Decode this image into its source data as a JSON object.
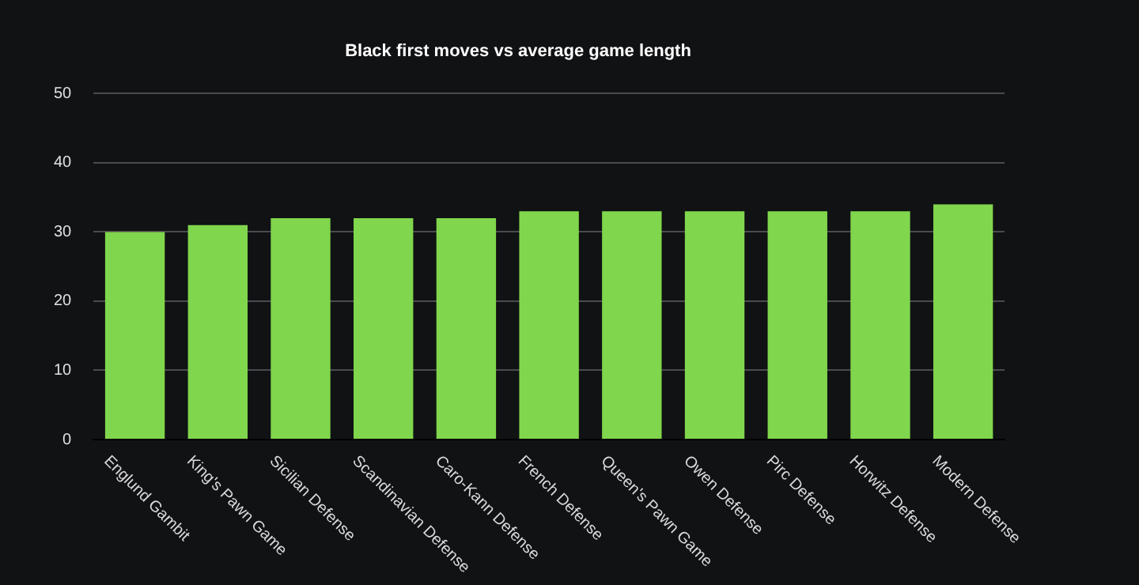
{
  "chart_data": {
    "type": "bar",
    "title": "Black first moves vs average game length",
    "categories": [
      "Englund Gambit",
      "King's Pawn Game",
      "Sicilian Defense",
      "Scandinavian Defense",
      "Caro-Kann Defense",
      "French Defense",
      "Queen's Pawn Game",
      "Owen Defense",
      "Pirc Defense",
      "Horwitz Defense",
      "Modern Defense"
    ],
    "values": [
      30,
      31,
      32,
      32,
      32,
      33,
      33,
      33,
      33,
      33,
      34
    ],
    "color": "#80d64c",
    "ylim": [
      0,
      50
    ],
    "yticks": [
      0,
      10,
      20,
      30,
      40,
      50
    ],
    "grid": "y"
  }
}
